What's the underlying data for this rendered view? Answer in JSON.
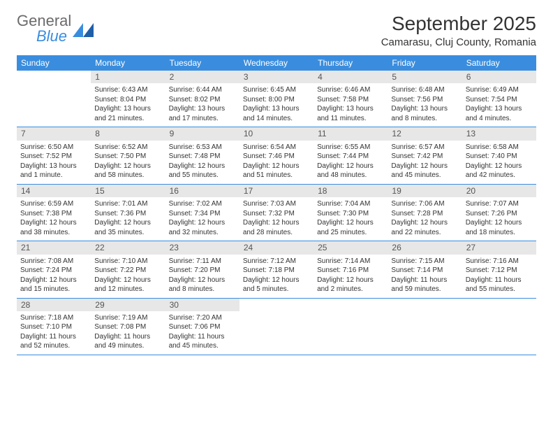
{
  "logo": {
    "word1": "General",
    "word2": "Blue"
  },
  "title": "September 2025",
  "location": "Camarasu, Cluj County, Romania",
  "colors": {
    "header_bg": "#3a8dde",
    "header_text": "#ffffff",
    "band_bg": "#e7e7e7",
    "text": "#333333",
    "logo_gray": "#6b6b6b",
    "logo_blue": "#3a8dde",
    "cell_border": "#3a8dde",
    "page_bg": "#ffffff"
  },
  "typography": {
    "title_fontsize": 28,
    "location_fontsize": 15,
    "header_fontsize": 12,
    "daynum_fontsize": 12,
    "body_fontsize": 10
  },
  "weekdays": [
    "Sunday",
    "Monday",
    "Tuesday",
    "Wednesday",
    "Thursday",
    "Friday",
    "Saturday"
  ],
  "weeks": [
    [
      null,
      {
        "n": "1",
        "sunrise": "Sunrise: 6:43 AM",
        "sunset": "Sunset: 8:04 PM",
        "daylight": "Daylight: 13 hours and 21 minutes."
      },
      {
        "n": "2",
        "sunrise": "Sunrise: 6:44 AM",
        "sunset": "Sunset: 8:02 PM",
        "daylight": "Daylight: 13 hours and 17 minutes."
      },
      {
        "n": "3",
        "sunrise": "Sunrise: 6:45 AM",
        "sunset": "Sunset: 8:00 PM",
        "daylight": "Daylight: 13 hours and 14 minutes."
      },
      {
        "n": "4",
        "sunrise": "Sunrise: 6:46 AM",
        "sunset": "Sunset: 7:58 PM",
        "daylight": "Daylight: 13 hours and 11 minutes."
      },
      {
        "n": "5",
        "sunrise": "Sunrise: 6:48 AM",
        "sunset": "Sunset: 7:56 PM",
        "daylight": "Daylight: 13 hours and 8 minutes."
      },
      {
        "n": "6",
        "sunrise": "Sunrise: 6:49 AM",
        "sunset": "Sunset: 7:54 PM",
        "daylight": "Daylight: 13 hours and 4 minutes."
      }
    ],
    [
      {
        "n": "7",
        "sunrise": "Sunrise: 6:50 AM",
        "sunset": "Sunset: 7:52 PM",
        "daylight": "Daylight: 13 hours and 1 minute."
      },
      {
        "n": "8",
        "sunrise": "Sunrise: 6:52 AM",
        "sunset": "Sunset: 7:50 PM",
        "daylight": "Daylight: 12 hours and 58 minutes."
      },
      {
        "n": "9",
        "sunrise": "Sunrise: 6:53 AM",
        "sunset": "Sunset: 7:48 PM",
        "daylight": "Daylight: 12 hours and 55 minutes."
      },
      {
        "n": "10",
        "sunrise": "Sunrise: 6:54 AM",
        "sunset": "Sunset: 7:46 PM",
        "daylight": "Daylight: 12 hours and 51 minutes."
      },
      {
        "n": "11",
        "sunrise": "Sunrise: 6:55 AM",
        "sunset": "Sunset: 7:44 PM",
        "daylight": "Daylight: 12 hours and 48 minutes."
      },
      {
        "n": "12",
        "sunrise": "Sunrise: 6:57 AM",
        "sunset": "Sunset: 7:42 PM",
        "daylight": "Daylight: 12 hours and 45 minutes."
      },
      {
        "n": "13",
        "sunrise": "Sunrise: 6:58 AM",
        "sunset": "Sunset: 7:40 PM",
        "daylight": "Daylight: 12 hours and 42 minutes."
      }
    ],
    [
      {
        "n": "14",
        "sunrise": "Sunrise: 6:59 AM",
        "sunset": "Sunset: 7:38 PM",
        "daylight": "Daylight: 12 hours and 38 minutes."
      },
      {
        "n": "15",
        "sunrise": "Sunrise: 7:01 AM",
        "sunset": "Sunset: 7:36 PM",
        "daylight": "Daylight: 12 hours and 35 minutes."
      },
      {
        "n": "16",
        "sunrise": "Sunrise: 7:02 AM",
        "sunset": "Sunset: 7:34 PM",
        "daylight": "Daylight: 12 hours and 32 minutes."
      },
      {
        "n": "17",
        "sunrise": "Sunrise: 7:03 AM",
        "sunset": "Sunset: 7:32 PM",
        "daylight": "Daylight: 12 hours and 28 minutes."
      },
      {
        "n": "18",
        "sunrise": "Sunrise: 7:04 AM",
        "sunset": "Sunset: 7:30 PM",
        "daylight": "Daylight: 12 hours and 25 minutes."
      },
      {
        "n": "19",
        "sunrise": "Sunrise: 7:06 AM",
        "sunset": "Sunset: 7:28 PM",
        "daylight": "Daylight: 12 hours and 22 minutes."
      },
      {
        "n": "20",
        "sunrise": "Sunrise: 7:07 AM",
        "sunset": "Sunset: 7:26 PM",
        "daylight": "Daylight: 12 hours and 18 minutes."
      }
    ],
    [
      {
        "n": "21",
        "sunrise": "Sunrise: 7:08 AM",
        "sunset": "Sunset: 7:24 PM",
        "daylight": "Daylight: 12 hours and 15 minutes."
      },
      {
        "n": "22",
        "sunrise": "Sunrise: 7:10 AM",
        "sunset": "Sunset: 7:22 PM",
        "daylight": "Daylight: 12 hours and 12 minutes."
      },
      {
        "n": "23",
        "sunrise": "Sunrise: 7:11 AM",
        "sunset": "Sunset: 7:20 PM",
        "daylight": "Daylight: 12 hours and 8 minutes."
      },
      {
        "n": "24",
        "sunrise": "Sunrise: 7:12 AM",
        "sunset": "Sunset: 7:18 PM",
        "daylight": "Daylight: 12 hours and 5 minutes."
      },
      {
        "n": "25",
        "sunrise": "Sunrise: 7:14 AM",
        "sunset": "Sunset: 7:16 PM",
        "daylight": "Daylight: 12 hours and 2 minutes."
      },
      {
        "n": "26",
        "sunrise": "Sunrise: 7:15 AM",
        "sunset": "Sunset: 7:14 PM",
        "daylight": "Daylight: 11 hours and 59 minutes."
      },
      {
        "n": "27",
        "sunrise": "Sunrise: 7:16 AM",
        "sunset": "Sunset: 7:12 PM",
        "daylight": "Daylight: 11 hours and 55 minutes."
      }
    ],
    [
      {
        "n": "28",
        "sunrise": "Sunrise: 7:18 AM",
        "sunset": "Sunset: 7:10 PM",
        "daylight": "Daylight: 11 hours and 52 minutes."
      },
      {
        "n": "29",
        "sunrise": "Sunrise: 7:19 AM",
        "sunset": "Sunset: 7:08 PM",
        "daylight": "Daylight: 11 hours and 49 minutes."
      },
      {
        "n": "30",
        "sunrise": "Sunrise: 7:20 AM",
        "sunset": "Sunset: 7:06 PM",
        "daylight": "Daylight: 11 hours and 45 minutes."
      },
      null,
      null,
      null,
      null
    ]
  ]
}
